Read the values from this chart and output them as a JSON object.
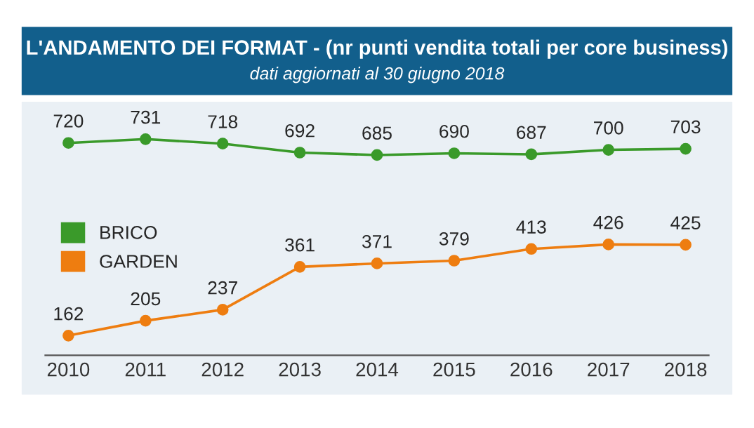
{
  "chart_data": {
    "type": "line",
    "title": "L'ANDAMENTO DEI FORMAT - (nr punti vendita totali per core business)",
    "subtitle": "dati aggiornati al 30 giugno 2018",
    "categories": [
      "2010",
      "2011",
      "2012",
      "2013",
      "2014",
      "2015",
      "2016",
      "2017",
      "2018"
    ],
    "series": [
      {
        "name": "BRICO",
        "color": "#3a9a2a",
        "values": [
          720,
          731,
          718,
          692,
          685,
          690,
          687,
          700,
          703
        ]
      },
      {
        "name": "GARDEN",
        "color": "#ee7d10",
        "values": [
          162,
          205,
          237,
          361,
          371,
          379,
          413,
          426,
          425
        ]
      }
    ],
    "data_labels": true,
    "marker": "circle",
    "legend": "left",
    "grid": false,
    "tick_labels": "x"
  }
}
